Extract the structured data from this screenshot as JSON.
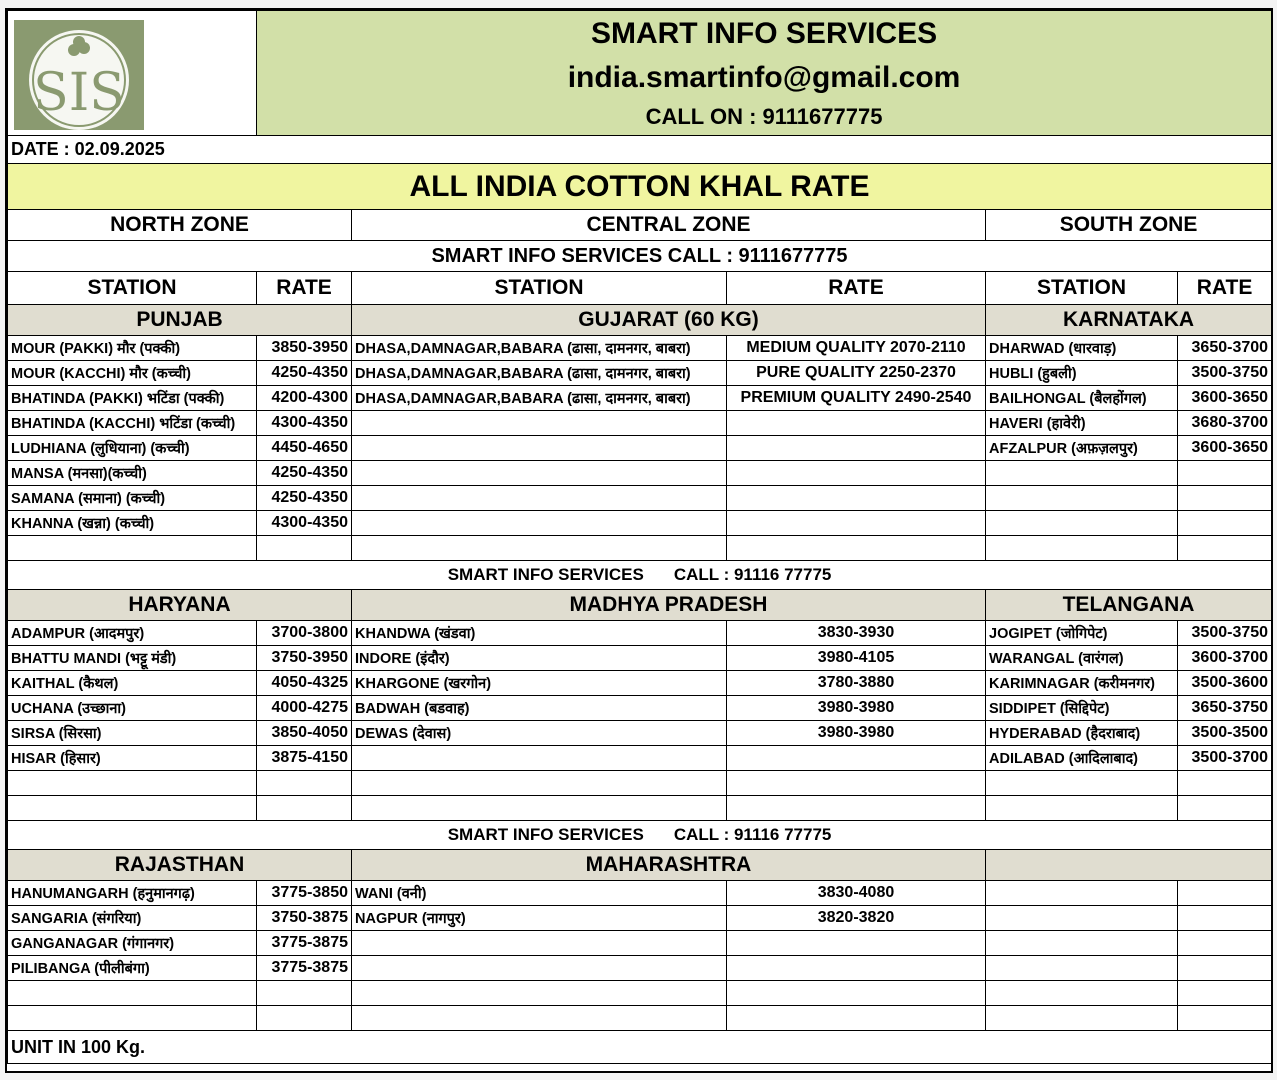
{
  "header": {
    "company": "SMART INFO SERVICES",
    "email": "india.smartinfo@gmail.com",
    "call": "CALL ON : 9111677775",
    "logo_text": "SIS"
  },
  "date": "DATE : 02.09.2025",
  "title": "ALL INDIA COTTON KHAL RATE",
  "zones": {
    "north": "NORTH ZONE",
    "central": "CENTRAL ZONE",
    "south": "SOUTH ZONE"
  },
  "banner1": "SMART INFO SERVICES CALL : 9111677775",
  "banner2": {
    "name": "SMART INFO SERVICES",
    "call": "CALL : 91116 77775"
  },
  "columns": {
    "station": "STATION",
    "rate": "RATE"
  },
  "section1": {
    "states": {
      "north": "PUNJAB",
      "central": "GUJARAT (60 KG)",
      "south": "KARNATAKA"
    },
    "rows": [
      {
        "n_station": "MOUR (PAKKI) मौर (पक्की)",
        "n_rate": "3850-3950",
        "c_station": "DHASA,DAMNAGAR,BABARA (ढासा, दामनगर, बाबरा)",
        "c_rate": "MEDIUM QUALITY 2070-2110",
        "s_station": "DHARWAD (धारवाड़)",
        "s_rate": "3650-3700"
      },
      {
        "n_station": "MOUR (KACCHI) मौर (कच्ची)",
        "n_rate": "4250-4350",
        "c_station": "DHASA,DAMNAGAR,BABARA (ढासा, दामनगर, बाबरा)",
        "c_rate": "PURE QUALITY 2250-2370",
        "s_station": "HUBLI (हुबली)",
        "s_rate": "3500-3750"
      },
      {
        "n_station": "BHATINDA (PAKKI) भटिंडा (पक्की)",
        "n_rate": "4200-4300",
        "c_station": "DHASA,DAMNAGAR,BABARA (ढासा, दामनगर, बाबरा)",
        "c_rate": "PREMIUM QUALITY 2490-2540",
        "s_station": "BAILHONGAL (बैलहोंगल)",
        "s_rate": "3600-3650"
      },
      {
        "n_station": "BHATINDA (KACCHI) भटिंडा (कच्ची)",
        "n_rate": "4300-4350",
        "c_station": "",
        "c_rate": "",
        "s_station": "HAVERI (हावेरी)",
        "s_rate": "3680-3700"
      },
      {
        "n_station": "LUDHIANA (लुधियाना) (कच्ची)",
        "n_rate": "4450-4650",
        "c_station": "",
        "c_rate": "",
        "s_station": "AFZALPUR (अफ़ज़लपुर)",
        "s_rate": "3600-3650"
      },
      {
        "n_station": "MANSA (मनसा)(कच्ची)",
        "n_rate": "4250-4350",
        "c_station": "",
        "c_rate": "",
        "s_station": "",
        "s_rate": ""
      },
      {
        "n_station": "SAMANA (समाना) (कच्ची)",
        "n_rate": "4250-4350",
        "c_station": "",
        "c_rate": "",
        "s_station": "",
        "s_rate": ""
      },
      {
        "n_station": "KHANNA (खन्ना) (कच्ची)",
        "n_rate": "4300-4350",
        "c_station": "",
        "c_rate": "",
        "s_station": "",
        "s_rate": ""
      },
      {
        "n_station": "",
        "n_rate": "",
        "c_station": "",
        "c_rate": "",
        "s_station": "",
        "s_rate": ""
      }
    ]
  },
  "section2": {
    "states": {
      "north": "HARYANA",
      "central": "MADHYA PRADESH",
      "south": "TELANGANA"
    },
    "rows": [
      {
        "n_station": "ADAMPUR (आदमपुर)",
        "n_rate": "3700-3800",
        "c_station": "KHANDWA (खंडवा)",
        "c_rate": "3830-3930",
        "s_station": "JOGIPET (जोगिपेट)",
        "s_rate": "3500-3750"
      },
      {
        "n_station": "BHATTU MANDI (भट्टू मंडी)",
        "n_rate": "3750-3950",
        "c_station": "INDORE (इंदौर)",
        "c_rate": "3980-4105",
        "s_station": "WARANGAL (वारंगल)",
        "s_rate": "3600-3700"
      },
      {
        "n_station": "KAITHAL (कैथल)",
        "n_rate": "4050-4325",
        "c_station": "KHARGONE (खरगोन)",
        "c_rate": "3780-3880",
        "s_station": "KARIMNAGAR (करीमनगर)",
        "s_rate": "3500-3600"
      },
      {
        "n_station": "UCHANA (उच्छाना)",
        "n_rate": "4000-4275",
        "c_station": "BADWAH (बडवाह)",
        "c_rate": "3980-3980",
        "s_station": "SIDDIPET (सिद्दिपेट)",
        "s_rate": "3650-3750"
      },
      {
        "n_station": "SIRSA (सिरसा)",
        "n_rate": "3850-4050",
        "c_station": "DEWAS (देवास)",
        "c_rate": "3980-3980",
        "s_station": "HYDERABAD (हैदराबाद)",
        "s_rate": "3500-3500"
      },
      {
        "n_station": "HISAR (हिसार)",
        "n_rate": "3875-4150",
        "c_station": "",
        "c_rate": "",
        "s_station": "ADILABAD (आदिलाबाद)",
        "s_rate": "3500-3700"
      },
      {
        "n_station": "",
        "n_rate": "",
        "c_station": "",
        "c_rate": "",
        "s_station": "",
        "s_rate": ""
      },
      {
        "n_station": "",
        "n_rate": "",
        "c_station": "",
        "c_rate": "",
        "s_station": "",
        "s_rate": ""
      }
    ]
  },
  "section3": {
    "states": {
      "north": "RAJASTHAN",
      "central": "MAHARASHTRA",
      "south": ""
    },
    "rows": [
      {
        "n_station": "HANUMANGARH (हनुमानगढ़)",
        "n_rate": "3775-3850",
        "c_station": "WANI (वनी)",
        "c_rate": "3830-4080",
        "s_station": "",
        "s_rate": ""
      },
      {
        "n_station": "SANGARIA (संगरिया)",
        "n_rate": "3750-3875",
        "c_station": "NAGPUR (नागपुर)",
        "c_rate": "3820-3820",
        "s_station": "",
        "s_rate": ""
      },
      {
        "n_station": "GANGANAGAR (गंगानगर)",
        "n_rate": "3775-3875",
        "c_station": "",
        "c_rate": "",
        "s_station": "",
        "s_rate": ""
      },
      {
        "n_station": "PILIBANGA (पीलीबंगा)",
        "n_rate": "3775-3875",
        "c_station": "",
        "c_rate": "",
        "s_station": "",
        "s_rate": ""
      },
      {
        "n_station": "",
        "n_rate": "",
        "c_station": "",
        "c_rate": "",
        "s_station": "",
        "s_rate": ""
      },
      {
        "n_station": "",
        "n_rate": "",
        "c_station": "",
        "c_rate": "",
        "s_station": "",
        "s_rate": ""
      }
    ]
  },
  "footer": "UNIT IN 100 Kg.",
  "colors": {
    "header_bg": "#d2e0a8",
    "title_bg": "#f0f5a0",
    "state_bg": "#e0ddd0",
    "logo_green": "#8a9a70"
  }
}
